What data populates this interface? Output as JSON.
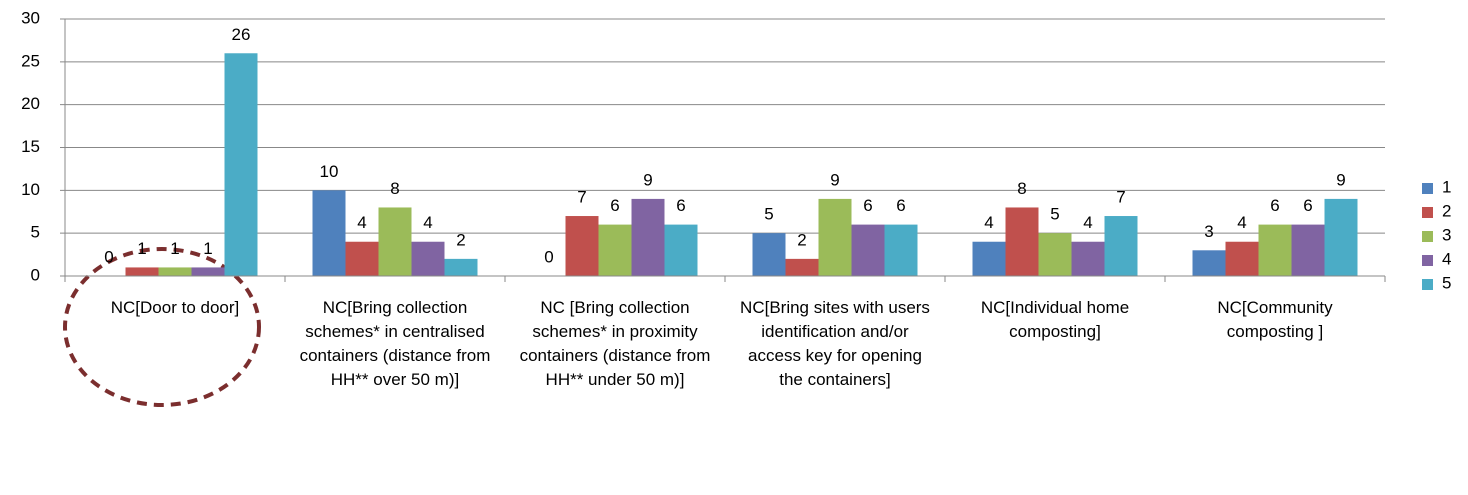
{
  "chart_data": {
    "type": "bar",
    "categories": [
      "NC[Door to door]",
      "NC[Bring collection schemes* in centralised containers (distance from HH** over 50 m)]",
      "NC [Bring collection schemes* in proximity containers (distance from HH** under 50 m)]",
      "NC[Bring sites with users identification and/or access key for opening the containers]",
      "NC[Individual home composting]",
      "NC[Community composting ]"
    ],
    "series": [
      {
        "name": "1",
        "color": "#4f81bd",
        "values": [
          0,
          10,
          0,
          5,
          4,
          3
        ]
      },
      {
        "name": "2",
        "color": "#c0504d",
        "values": [
          1,
          4,
          7,
          2,
          8,
          4
        ]
      },
      {
        "name": "3",
        "color": "#9bbb59",
        "values": [
          1,
          8,
          6,
          9,
          5,
          6
        ]
      },
      {
        "name": "4",
        "color": "#8064a2",
        "values": [
          1,
          4,
          9,
          6,
          4,
          6
        ]
      },
      {
        "name": "5",
        "color": "#4bacc6",
        "values": [
          26,
          2,
          6,
          6,
          7,
          9
        ]
      }
    ],
    "ylim": [
      0,
      30
    ],
    "yticks": [
      0,
      5,
      10,
      15,
      20,
      25,
      30
    ],
    "grid": true,
    "legend": "right"
  }
}
